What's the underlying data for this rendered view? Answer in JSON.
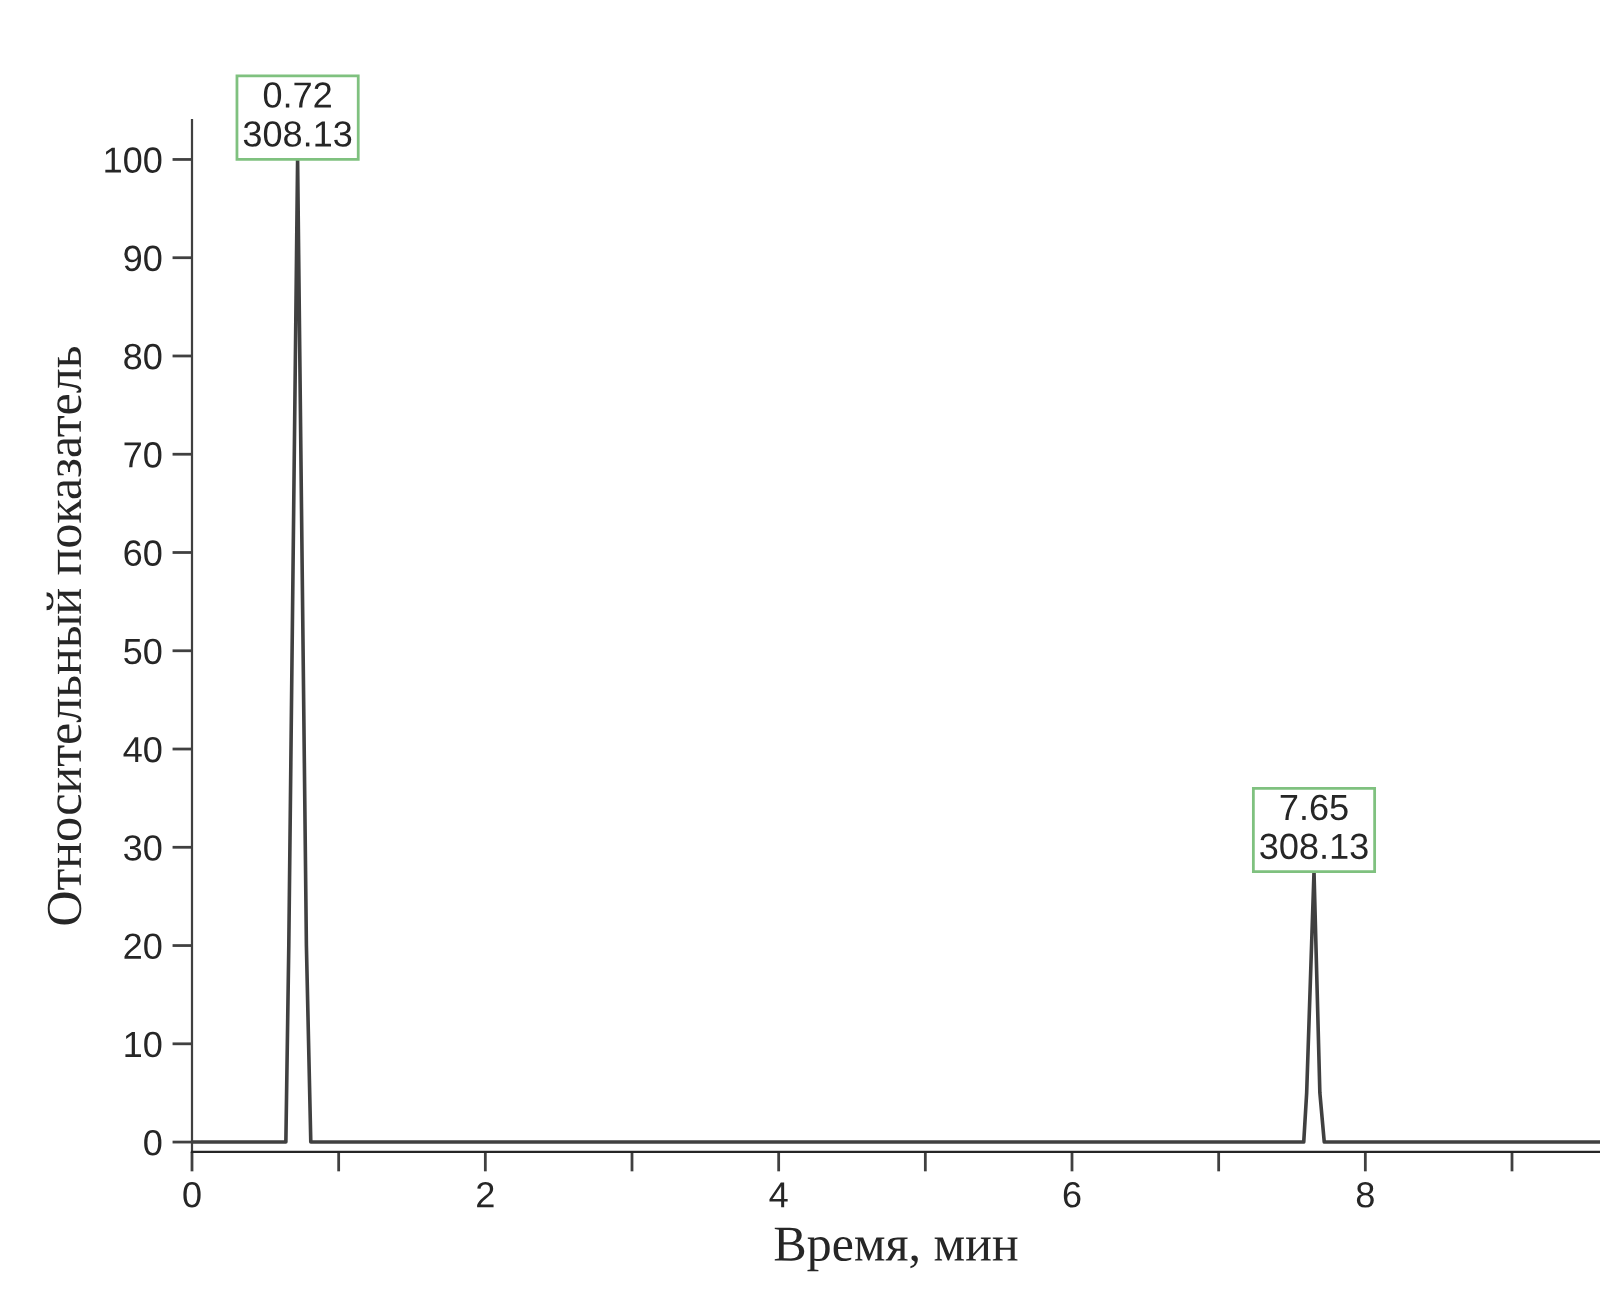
{
  "chart_data": {
    "type": "line",
    "xlabel": "Время, мин",
    "ylabel": "Относительный показатель",
    "series": [
      {
        "color": "#404040",
        "x": [
          0,
          0.64,
          0.66,
          0.72,
          0.78,
          0.81,
          7.58,
          7.6,
          7.65,
          7.69,
          7.72,
          9.6
        ],
        "values": [
          0,
          0,
          20,
          100,
          20,
          0,
          0,
          5,
          27.5,
          5,
          0,
          0
        ]
      }
    ],
    "annotations": [
      {
        "text": "0.72\n308.13",
        "x": 0.72,
        "y": 100
      },
      {
        "text": "7.65\n308.13",
        "x": 7.65,
        "y": 27.5
      }
    ],
    "xlim": [
      0,
      9.6
    ],
    "ylim": [
      -1,
      104
    ],
    "xticks": [
      0,
      {
        "value": 1,
        "label": null
      },
      2,
      {
        "value": 3,
        "label": null
      },
      4,
      {
        "value": 5,
        "label": null
      },
      6,
      {
        "value": 7,
        "label": null
      },
      8,
      {
        "value": 9,
        "label": null
      }
    ],
    "yticks": [
      0,
      10,
      20,
      30,
      40,
      50,
      60,
      70,
      80,
      90,
      100
    ],
    "grid": false,
    "marker": "none",
    "line_style": "solid"
  }
}
